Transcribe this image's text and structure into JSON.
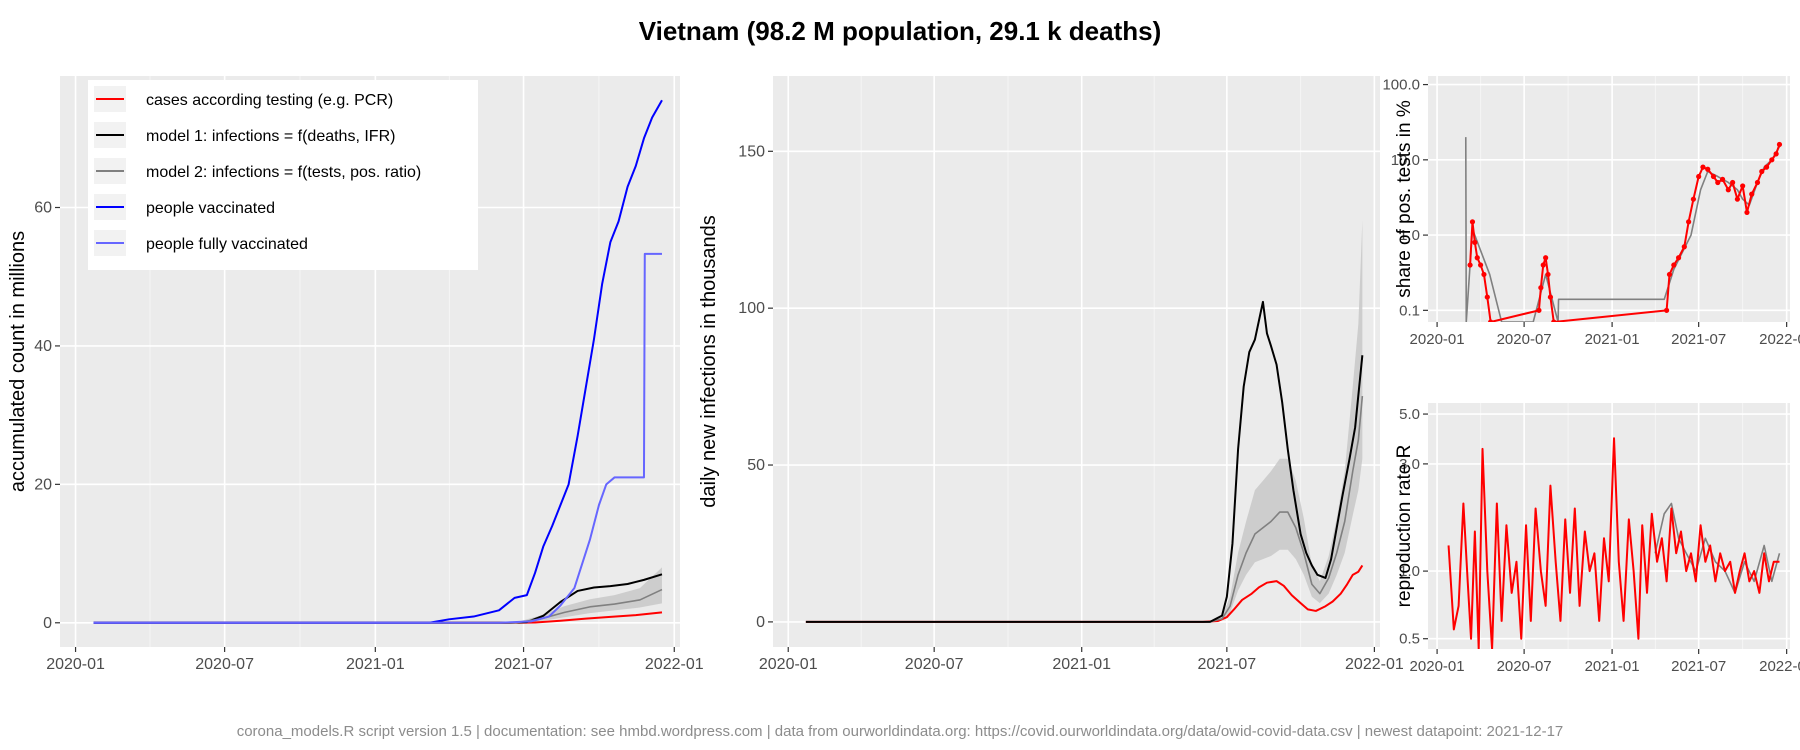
{
  "title": "Vietnam (98.2 M population, 29.1 k deaths)",
  "footer": "corona_models.R script version 1.5 | documentation: see hmbd.wordpress.com | data from ourworldindata.org: https://covid.ourworldindata.org/data/owid-covid-data.csv | newest datapoint: 2021-12-17",
  "colors": {
    "cases": "#ff0000",
    "model1": "#000000",
    "model2": "#808080",
    "vaccinated": "#0000ff",
    "fully_vaccinated": "#6666ff",
    "panel_bg": "#ebebeb",
    "band": "#c8c8c8"
  },
  "chart_data": [
    {
      "type": "line",
      "ylabel": "accumulated count in millions",
      "xlabel": "",
      "x_ticks": [
        "2020-01",
        "2020-07",
        "2021-01",
        "2021-07",
        "2022-01"
      ],
      "y_ticks": [
        "0",
        "20",
        "40",
        "60"
      ],
      "ylim": [
        -3.5,
        79
      ],
      "legend_position": "top-left",
      "legend": [
        {
          "key": "cases",
          "label": "cases according testing (e.g. PCR)"
        },
        {
          "key": "model1",
          "label": "model 1: infections = f(deaths, IFR)"
        },
        {
          "key": "model2",
          "label": "model 2: infections = f(tests, pos. ratio)"
        },
        {
          "key": "vaccinated",
          "label": "people vaccinated"
        },
        {
          "key": "fully_vaccinated",
          "label": "people fully vaccinated"
        }
      ],
      "series": [
        {
          "key": "cases",
          "x": [
            "2020-01-23",
            "2021-04-25",
            "2021-06-15",
            "2021-07-15",
            "2021-08-15",
            "2021-09-15",
            "2021-10-15",
            "2021-11-15",
            "2021-12-17"
          ],
          "y": [
            0,
            0,
            0.01,
            0.04,
            0.3,
            0.6,
            0.85,
            1.1,
            1.5
          ]
        },
        {
          "key": "model1",
          "x": [
            "2020-01-23",
            "2021-06-15",
            "2021-07-05",
            "2021-07-25",
            "2021-08-15",
            "2021-09-05",
            "2021-09-25",
            "2021-10-15",
            "2021-11-05",
            "2021-11-25",
            "2021-12-17"
          ],
          "y": [
            0,
            0,
            0.1,
            1.0,
            3.0,
            4.6,
            5.1,
            5.3,
            5.6,
            6.2,
            7.0
          ]
        },
        {
          "key": "model2",
          "x": [
            "2020-01-23",
            "2021-06-20",
            "2021-07-20",
            "2021-08-20",
            "2021-09-20",
            "2021-10-20",
            "2021-11-20",
            "2021-12-17"
          ],
          "y": [
            0,
            0,
            0.5,
            1.5,
            2.3,
            2.7,
            3.3,
            4.8
          ]
        },
        {
          "key": "vaccinated",
          "x": [
            "2020-01-23",
            "2021-03-08",
            "2021-04-01",
            "2021-05-01",
            "2021-06-01",
            "2021-06-20",
            "2021-07-05",
            "2021-07-15",
            "2021-07-25",
            "2021-08-05",
            "2021-08-15",
            "2021-08-25",
            "2021-09-05",
            "2021-09-15",
            "2021-09-25",
            "2021-10-05",
            "2021-10-15",
            "2021-10-25",
            "2021-11-05",
            "2021-11-15",
            "2021-11-25",
            "2021-12-05",
            "2021-12-17"
          ],
          "y": [
            0,
            0,
            0.5,
            0.9,
            1.8,
            3.6,
            4.0,
            7.2,
            11,
            14,
            17,
            20,
            27,
            34,
            41,
            49,
            55,
            58,
            63,
            66,
            70,
            73,
            75.5
          ]
        },
        {
          "key": "fully_vaccinated",
          "x": [
            "2020-01-23",
            "2021-06-01",
            "2021-07-10",
            "2021-08-01",
            "2021-08-15",
            "2021-09-01",
            "2021-09-20",
            "2021-10-01",
            "2021-10-10",
            "2021-10-20",
            "2021-11-25",
            "2021-11-26",
            "2021-12-17"
          ],
          "y": [
            0,
            0,
            0.2,
            0.9,
            2.5,
            5,
            12,
            17,
            20,
            21,
            21,
            53.3,
            53.3
          ]
        }
      ],
      "bands": [
        {
          "key": "model2",
          "x": [
            "2021-06-20",
            "2021-07-20",
            "2021-08-20",
            "2021-09-20",
            "2021-10-20",
            "2021-11-20",
            "2021-12-17"
          ],
          "low": [
            0,
            0.2,
            0.8,
            1.4,
            1.8,
            2.2,
            2.8
          ],
          "high": [
            0,
            1.0,
            2.4,
            3.4,
            4.0,
            5.0,
            8.0
          ]
        }
      ]
    },
    {
      "type": "line",
      "ylabel": "daily new infections in thousands",
      "xlabel": "",
      "x_ticks": [
        "2020-01",
        "2020-07",
        "2021-01",
        "2021-07",
        "2022-01"
      ],
      "y_ticks": [
        "0",
        "50",
        "100",
        "150"
      ],
      "ylim": [
        -8,
        174
      ],
      "series": [
        {
          "key": "cases",
          "x": [
            "2020-01-23",
            "2021-06-01",
            "2021-06-20",
            "2021-07-01",
            "2021-07-10",
            "2021-07-20",
            "2021-08-01",
            "2021-08-10",
            "2021-08-20",
            "2021-09-01",
            "2021-09-10",
            "2021-09-20",
            "2021-10-01",
            "2021-10-10",
            "2021-10-20",
            "2021-11-01",
            "2021-11-10",
            "2021-11-20",
            "2021-11-28",
            "2021-12-05",
            "2021-12-12",
            "2021-12-17"
          ],
          "y": [
            0,
            0,
            0.3,
            1.5,
            4,
            7,
            9,
            11,
            12.5,
            13,
            11.5,
            8.5,
            6,
            4,
            3.5,
            5,
            6.5,
            9,
            12,
            15,
            16,
            18
          ]
        },
        {
          "key": "model2",
          "x": [
            "2021-06-10",
            "2021-06-25",
            "2021-07-05",
            "2021-07-15",
            "2021-07-25",
            "2021-08-05",
            "2021-08-15",
            "2021-08-25",
            "2021-09-05",
            "2021-09-15",
            "2021-09-25",
            "2021-10-05",
            "2021-10-15",
            "2021-10-25",
            "2021-11-05",
            "2021-11-15",
            "2021-11-25",
            "2021-12-05",
            "2021-12-12",
            "2021-12-17"
          ],
          "y": [
            0,
            1,
            5,
            15,
            22,
            28,
            30,
            32,
            35,
            35,
            30,
            22,
            12,
            9,
            14,
            22,
            32,
            48,
            58,
            72
          ]
        },
        {
          "key": "model1",
          "x": [
            "2020-01-23",
            "2021-06-10",
            "2021-06-25",
            "2021-07-01",
            "2021-07-08",
            "2021-07-15",
            "2021-07-22",
            "2021-07-29",
            "2021-08-05",
            "2021-08-10",
            "2021-08-15",
            "2021-08-20",
            "2021-08-25",
            "2021-09-01",
            "2021-09-08",
            "2021-09-15",
            "2021-09-22",
            "2021-10-01",
            "2021-10-08",
            "2021-10-15",
            "2021-10-22",
            "2021-11-01",
            "2021-11-08",
            "2021-11-15",
            "2021-11-22",
            "2021-12-01",
            "2021-12-08",
            "2021-12-17"
          ],
          "y": [
            0,
            0,
            2,
            8,
            25,
            55,
            75,
            86,
            90,
            96,
            102,
            92,
            88,
            82,
            70,
            55,
            42,
            28,
            22,
            18,
            15,
            14,
            20,
            30,
            40,
            52,
            62,
            85
          ]
        }
      ],
      "bands": [
        {
          "key": "model2",
          "x": [
            "2021-06-10",
            "2021-06-25",
            "2021-07-05",
            "2021-07-15",
            "2021-07-25",
            "2021-08-05",
            "2021-08-15",
            "2021-08-25",
            "2021-09-05",
            "2021-09-15",
            "2021-09-25",
            "2021-10-05",
            "2021-10-15",
            "2021-10-25",
            "2021-11-05",
            "2021-11-15",
            "2021-11-25",
            "2021-12-05",
            "2021-12-12",
            "2021-12-17"
          ],
          "low": [
            0,
            0.5,
            3,
            10,
            15,
            19,
            20,
            21,
            23,
            23,
            20,
            15,
            8,
            6,
            9,
            15,
            22,
            34,
            42,
            52
          ],
          "high": [
            0,
            2,
            8,
            22,
            32,
            42,
            45,
            48,
            52,
            52,
            45,
            33,
            18,
            13,
            21,
            33,
            48,
            75,
            95,
            128
          ]
        }
      ]
    },
    {
      "type": "scatter",
      "ylabel": "share of pos. tests in %",
      "xlabel": "",
      "x_ticks": [
        "2020-01",
        "2020-07",
        "2021-01",
        "2021-07",
        "2022-01"
      ],
      "y_ticks": [
        "0.1",
        "1.0",
        "10.0",
        "100.0"
      ],
      "y_scale": "log",
      "ylim": [
        0.07,
        130
      ],
      "series": [
        {
          "key": "model2",
          "x": [
            "2020-03-01",
            "2020-03-02",
            "2020-03-15",
            "2020-04-20",
            "2020-05-15",
            "2020-07-20",
            "2020-08-15",
            "2020-09-10",
            "2020-09-11",
            "2021-04-20",
            "2021-05-10",
            "2021-06-15",
            "2021-07-05",
            "2021-07-20",
            "2021-08-10",
            "2021-09-01",
            "2021-09-20",
            "2021-10-01",
            "2021-10-15",
            "2021-11-01",
            "2021-11-15",
            "2021-12-01",
            "2021-12-17"
          ],
          "y": [
            20,
            0.07,
            1.2,
            0.3,
            0.07,
            0.07,
            0.3,
            0.07,
            0.14,
            0.14,
            0.35,
            1,
            4,
            7,
            6,
            5,
            4,
            3,
            2.5,
            5,
            8,
            10,
            15
          ]
        },
        {
          "key": "cases",
          "x": [
            "2020-03-10",
            "2020-03-15",
            "2020-03-20",
            "2020-03-25",
            "2020-04-01",
            "2020-04-08",
            "2020-04-15",
            "2020-04-22",
            "2020-08-01",
            "2020-08-05",
            "2020-08-10",
            "2020-08-15",
            "2020-08-20",
            "2020-08-25",
            "2020-09-01",
            "2021-04-25",
            "2021-05-01",
            "2021-05-10",
            "2021-05-20",
            "2021-06-01",
            "2021-06-10",
            "2021-06-20",
            "2021-07-01",
            "2021-07-10",
            "2021-07-20",
            "2021-08-01",
            "2021-08-10",
            "2021-08-20",
            "2021-09-01",
            "2021-09-10",
            "2021-09-20",
            "2021-10-01",
            "2021-10-10",
            "2021-10-20",
            "2021-11-01",
            "2021-11-10",
            "2021-11-20",
            "2021-12-01",
            "2021-12-10",
            "2021-12-17"
          ],
          "y": [
            0.4,
            1.5,
            0.8,
            0.5,
            0.4,
            0.3,
            0.15,
            0.07,
            0.1,
            0.2,
            0.4,
            0.5,
            0.3,
            0.15,
            0.07,
            0.1,
            0.3,
            0.4,
            0.5,
            0.7,
            1.5,
            3,
            6,
            8,
            7.5,
            6,
            5,
            5.5,
            4,
            5,
            3,
            4.5,
            2,
            3.5,
            5,
            7,
            8,
            10,
            12,
            16
          ]
        }
      ]
    },
    {
      "type": "line",
      "ylabel": "reproduction rate R",
      "xlabel": "",
      "x_ticks": [
        "2020-01",
        "2020-07",
        "2021-01",
        "2021-07",
        "2022-01"
      ],
      "y_ticks": [
        "0.5",
        "1.0",
        "3.0",
        "5.0"
      ],
      "y_scale": "log",
      "ylim": [
        0.45,
        5.6
      ],
      "series": [
        {
          "key": "model2",
          "x": [
            "2021-04-01",
            "2021-04-20",
            "2021-05-05",
            "2021-05-20",
            "2021-06-05",
            "2021-06-25",
            "2021-07-15",
            "2021-08-05",
            "2021-08-25",
            "2021-09-15",
            "2021-10-05",
            "2021-10-25",
            "2021-11-15",
            "2021-12-01",
            "2021-12-17"
          ],
          "y": [
            1.2,
            1.8,
            2.0,
            1.4,
            1.2,
            1.0,
            1.4,
            1.1,
            1.0,
            0.8,
            1.1,
            0.9,
            1.3,
            0.9,
            1.2
          ]
        },
        {
          "key": "cases",
          "x": [
            "2020-01-25",
            "2020-02-05",
            "2020-02-15",
            "2020-02-25",
            "2020-03-05",
            "2020-03-12",
            "2020-03-20",
            "2020-03-28",
            "2020-04-05",
            "2020-04-15",
            "2020-04-25",
            "2020-05-05",
            "2020-05-15",
            "2020-05-25",
            "2020-06-05",
            "2020-06-15",
            "2020-06-25",
            "2020-07-05",
            "2020-07-15",
            "2020-07-25",
            "2020-08-05",
            "2020-08-15",
            "2020-08-25",
            "2020-09-05",
            "2020-09-15",
            "2020-09-25",
            "2020-10-05",
            "2020-10-15",
            "2020-10-25",
            "2020-11-05",
            "2020-11-15",
            "2020-11-25",
            "2020-12-05",
            "2020-12-15",
            "2020-12-25",
            "2021-01-05",
            "2021-01-15",
            "2021-01-25",
            "2021-02-05",
            "2021-02-15",
            "2021-02-25",
            "2021-03-05",
            "2021-03-15",
            "2021-03-25",
            "2021-04-05",
            "2021-04-15",
            "2021-04-25",
            "2021-05-05",
            "2021-05-15",
            "2021-05-25",
            "2021-06-05",
            "2021-06-15",
            "2021-06-25",
            "2021-07-05",
            "2021-07-15",
            "2021-07-25",
            "2021-08-05",
            "2021-08-15",
            "2021-08-25",
            "2021-09-05",
            "2021-09-15",
            "2021-09-25",
            "2021-10-05",
            "2021-10-15",
            "2021-10-25",
            "2021-11-05",
            "2021-11-15",
            "2021-11-25",
            "2021-12-05",
            "2021-12-17"
          ],
          "y": [
            1.3,
            0.55,
            0.7,
            2.0,
            0.9,
            0.5,
            1.5,
            0.45,
            3.5,
            1.0,
            0.45,
            2.0,
            0.6,
            1.6,
            0.8,
            1.1,
            0.5,
            1.6,
            0.6,
            1.9,
            1.0,
            0.7,
            2.4,
            1.1,
            0.6,
            1.7,
            0.8,
            1.9,
            0.7,
            1.5,
            1.0,
            1.2,
            0.6,
            1.4,
            0.9,
            3.9,
            1.1,
            0.6,
            1.7,
            1.0,
            0.5,
            1.6,
            0.8,
            1.8,
            1.1,
            1.4,
            0.9,
            1.9,
            1.2,
            1.5,
            1.0,
            1.2,
            0.9,
            1.6,
            1.1,
            1.3,
            0.9,
            1.2,
            1.0,
            1.1,
            0.8,
            1.0,
            1.2,
            0.9,
            1.0,
            0.8,
            1.2,
            0.9,
            1.1,
            1.1
          ]
        }
      ]
    }
  ]
}
